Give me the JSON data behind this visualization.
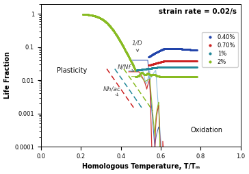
{
  "title": "strain rate = 0.02/s",
  "xlabel": "Homologous Temperature, T/Tₘ",
  "ylabel": "Life Fraction",
  "xlim": [
    0,
    1
  ],
  "x_ticks": [
    0,
    0.2,
    0.4,
    0.6,
    0.8,
    1.0
  ],
  "y_ticks_log": [
    0.0001,
    0.001,
    0.01,
    0.1,
    1
  ],
  "y_tick_labels": [
    "0.0001",
    "0.001",
    "0.01",
    "0.1",
    "1"
  ],
  "colors": {
    "blue": "#2244aa",
    "red": "#cc2222",
    "teal": "#228899",
    "green": "#88bb22"
  },
  "legend_labels": [
    "0.40%",
    "0.70%",
    "1%",
    "2%"
  ],
  "annotation_1D": "1/D",
  "annotation_NNf": "N/Nf",
  "annotation_Nhac": "Nh/ac",
  "label_plasticity": "Plasticity",
  "label_oxidation": "Oxidation",
  "figsize": [
    3.64,
    2.54
  ],
  "dpi": 100
}
